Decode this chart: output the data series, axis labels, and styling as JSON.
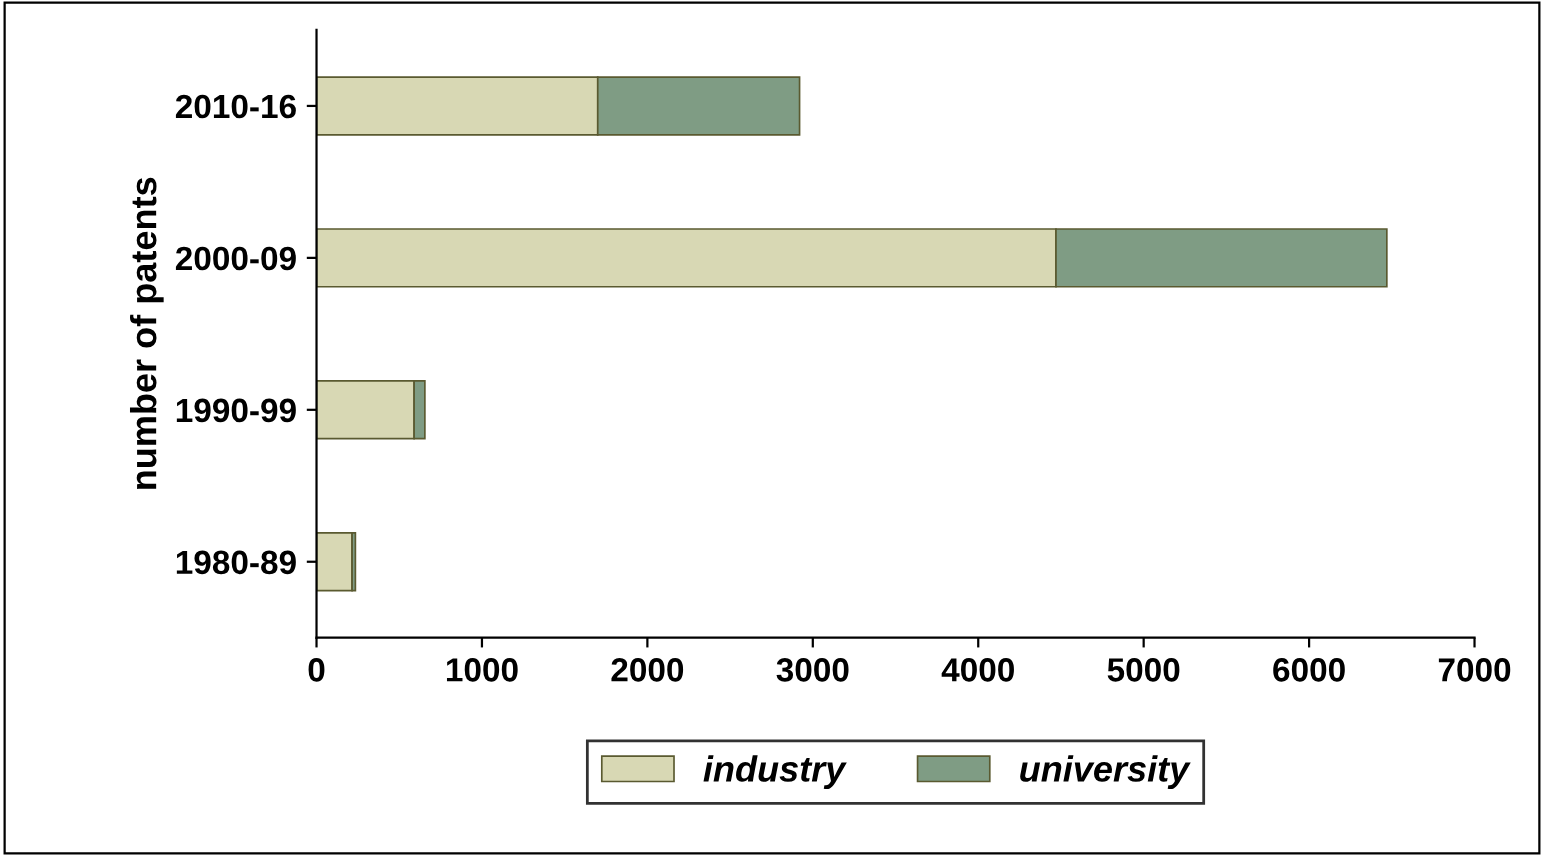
{
  "chart_data": {
    "type": "bar",
    "orientation": "horizontal",
    "stacked": true,
    "ylabel": "number of patents",
    "categories": [
      "2010-16",
      "2000-09",
      "1990-99",
      "1980-89"
    ],
    "series": [
      {
        "name": "industry",
        "color": "#d8d8b4",
        "values": [
          1700,
          4470,
          590,
          215
        ]
      },
      {
        "name": "university",
        "color": "#7f9c84",
        "values": [
          1220,
          2000,
          65,
          20
        ]
      }
    ],
    "xlim": [
      0,
      7000
    ],
    "xticks": [
      0,
      1000,
      2000,
      3000,
      4000,
      5000,
      6000,
      7000
    ],
    "grid": false,
    "legend": "bottom"
  }
}
